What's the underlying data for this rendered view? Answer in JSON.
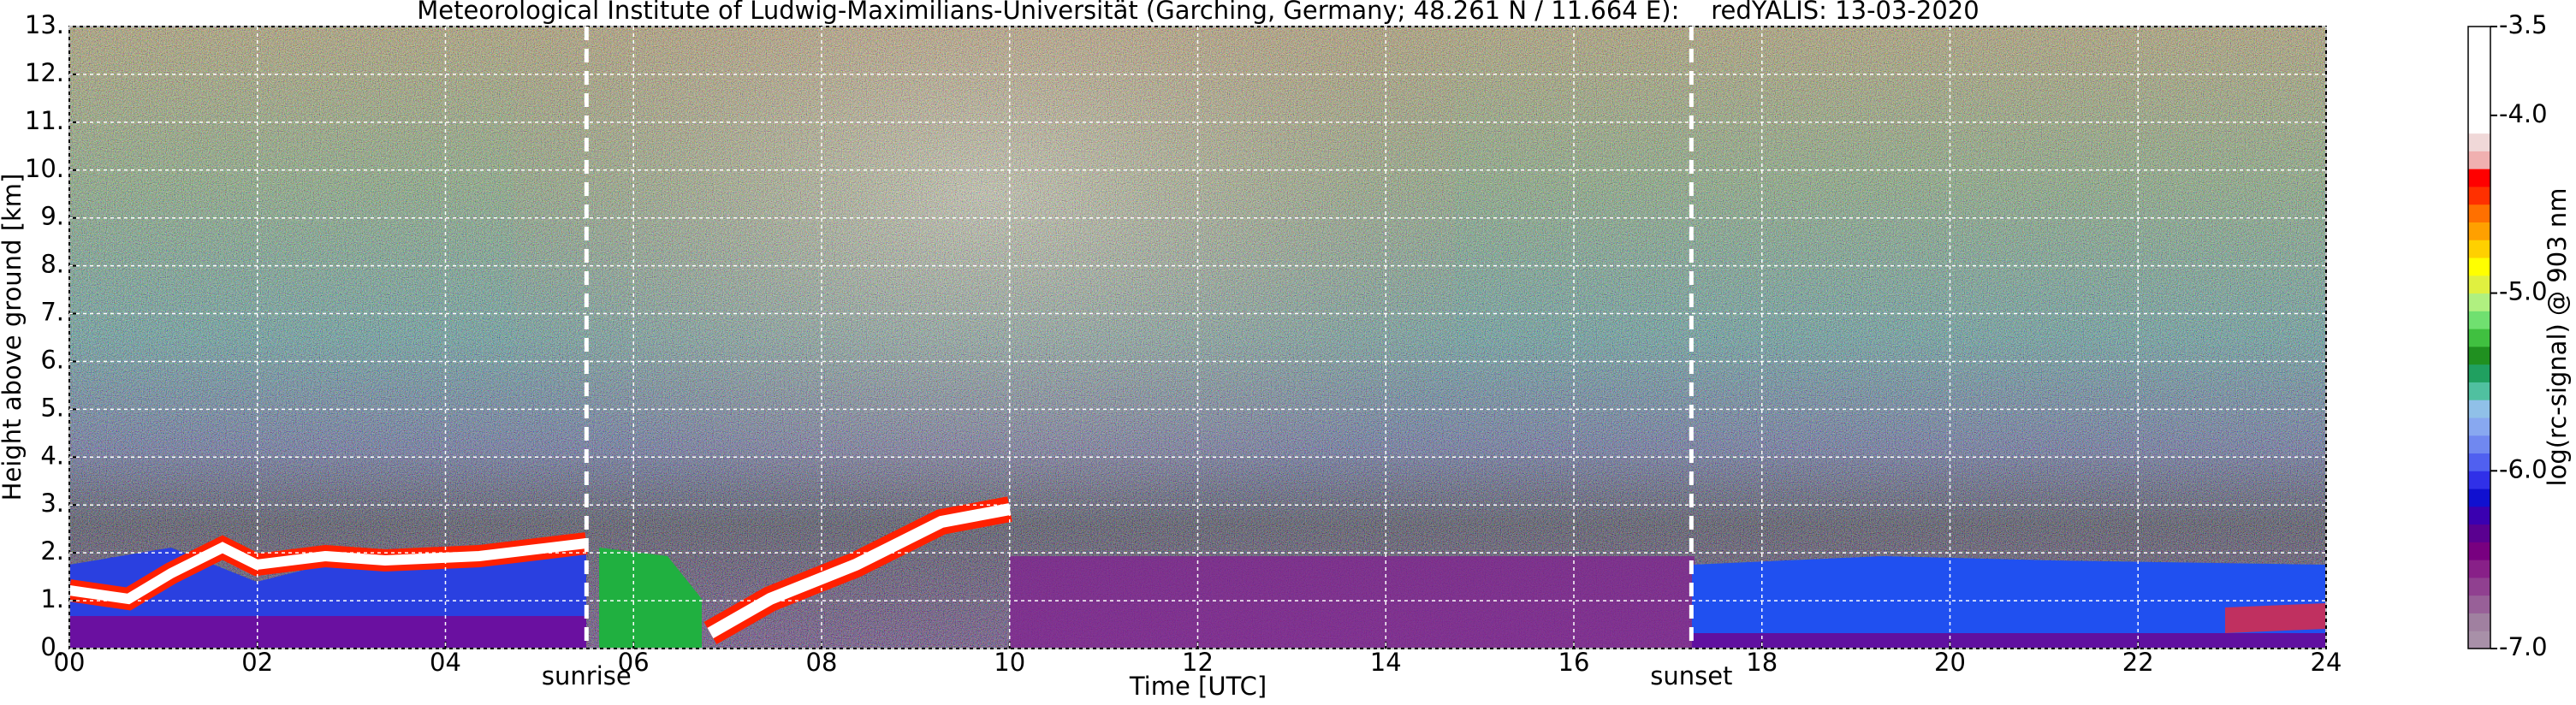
{
  "chart_data": {
    "type": "lidar-profile",
    "title": "Meteorological Institute of Ludwig-Maximilians-Universität (Garching, Germany; 48.261 N / 11.664 E):    redYALIS: 13-03-2020",
    "x_label": "Time [UTC]",
    "y_label": "Height above ground [km]",
    "xlim": [
      0,
      24
    ],
    "xticks": [
      {
        "value": 0,
        "label": "00"
      },
      {
        "value": 2,
        "label": "02"
      },
      {
        "value": 4,
        "label": "04"
      },
      {
        "value": 6,
        "label": "06"
      },
      {
        "value": 8,
        "label": "08"
      },
      10,
      12,
      14,
      16,
      18,
      20,
      22,
      24
    ],
    "ylim": [
      0,
      13
    ],
    "yticks": [
      {
        "value": 0,
        "label": "0."
      },
      {
        "value": 1,
        "label": "1."
      },
      {
        "value": 2,
        "label": "2."
      },
      {
        "value": 3,
        "label": "3."
      },
      {
        "value": 4,
        "label": "4."
      },
      {
        "value": 5,
        "label": "5."
      },
      {
        "value": 6,
        "label": "6."
      },
      {
        "value": 7,
        "label": "7."
      },
      {
        "value": 8,
        "label": "8."
      },
      {
        "value": 9,
        "label": "9."
      },
      {
        "value": 10,
        "label": "10."
      },
      {
        "value": 11,
        "label": "11."
      },
      {
        "value": 12,
        "label": "12."
      },
      {
        "value": 13,
        "label": "13."
      }
    ],
    "grid": true,
    "annotations": [
      {
        "text": "sunrise",
        "x": 5.5
      },
      {
        "text": "sunset",
        "x": 17.25
      }
    ],
    "colorbar": {
      "label": "log(rc-signal) @ 903 nm",
      "lim": [
        -7.0,
        -3.5
      ],
      "ticks": [
        {
          "value": -7,
          "label": "-7.0"
        },
        {
          "value": -6,
          "label": "-6.0"
        },
        {
          "value": -5,
          "label": "-5.0"
        },
        {
          "value": -4,
          "label": "-4.0"
        },
        -3.5
      ],
      "colors": [
        "#a890a8",
        "#a080a0",
        "#986098",
        "#904090",
        "#882088",
        "#780080",
        "#5a0090",
        "#3a00b0",
        "#1010d0",
        "#3030e8",
        "#5060f0",
        "#7088f0",
        "#88a8f0",
        "#90c0e8",
        "#50c0a0",
        "#20a060",
        "#209020",
        "#40c040",
        "#70e070",
        "#b0f080",
        "#e0f040",
        "#ffff00",
        "#ffd000",
        "#ffa000",
        "#ff7000",
        "#ff3000",
        "#ff0000",
        "#f0b0b0",
        "#f0d8d8",
        "#ffffff",
        "#ffffff",
        "#ffffff",
        "#ffffff",
        "#ffffff",
        "#ffffff"
      ]
    }
  }
}
